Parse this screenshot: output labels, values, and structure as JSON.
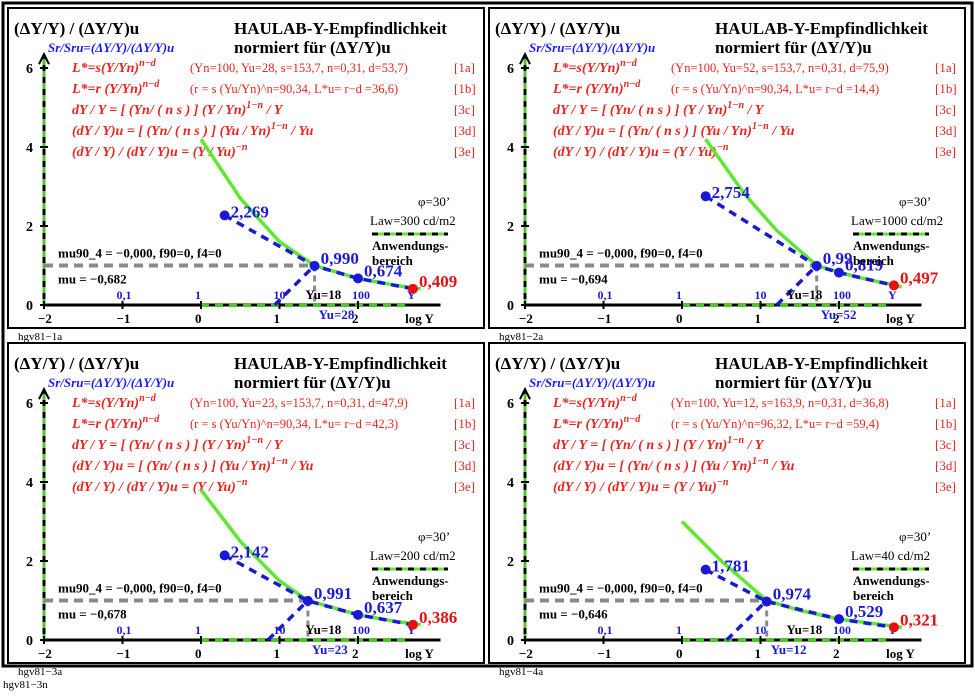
{
  "page_footer": "hgv81−3n",
  "colors": {
    "frame": "#000000",
    "formula_red": "#e8241f",
    "title_blue": "#1a1aff",
    "data_blue": "#1a1ad6",
    "curve_green": "#5ee832",
    "dash_gray": "#8a8a8a",
    "point_red": "#e81010",
    "axis_dash_green": "#4cc62a",
    "axis_dash_black": "#000000"
  },
  "panels": [
    {
      "id": "hgv81-1a",
      "title_left_1": "(ΔY/Y) / (ΔY/Y)u",
      "title_left_2": "Sr/Sru=(ΔY/Y)/(ΔY/Y)u",
      "title_right_1": "HAULAB-Y-Empfindlichkeit",
      "title_right_2": "normiert für (ΔY/Y)u",
      "formulas": [
        {
          "text": "L*=s(Y/Yn)^n−d",
          "params": "(Yn=100, Yu=28, s=153,7, n=0,31, d=53,7)",
          "tag": "[1a]"
        },
        {
          "text": "L*=r (Y/Yn)^n−d",
          "params": "(r = s (Yu/Yn)^n=90,34, L*u= r−d =36,6)",
          "tag": "[1b]"
        },
        {
          "text": "dY / Y = [ (Yn/ ( n s ) ] (Y / Yn)^(1−n) / Y",
          "params": "",
          "tag": "[3c]"
        },
        {
          "text": "(dY / Y)u = [ (Yn/ ( n s ) ] (Yu / Yn)^(1−n) / Yu",
          "params": "",
          "tag": "[3d]"
        },
        {
          "text": "(dY / Y) / (dY / Y)u = (Y / Yu)^−n",
          "params": "",
          "tag": "[3e]"
        }
      ],
      "phi": "φ=30’",
      "Law": "Law=300 cd/m2",
      "application_label": "Anwendungs-\nbereich",
      "m_u90": "mu90_4 = −0,000, f90=0, f4=0",
      "m_u": "mu = −0,682",
      "footer": "hgv81−1a",
      "Yu_label": "Yu=18",
      "Yu_below": "Yu=28",
      "chart_data": {
        "type": "line",
        "xlabel": "log Y",
        "xlim": [
          -2,
          3
        ],
        "ylim": [
          0,
          6
        ],
        "x_ticks": [
          -2,
          -1,
          0,
          1,
          2
        ],
        "y_ticks": [
          0,
          2,
          4,
          6
        ],
        "linear_Y_tick_labels": [
          "0,1",
          "1",
          "10",
          "100",
          "Y"
        ],
        "labeled_points": [
          {
            "logY": 0.301,
            "value": 2.269,
            "label": "2,269"
          },
          {
            "logY": 1.447,
            "value": 0.99,
            "label": "0,990"
          },
          {
            "logY": 2.0,
            "value": 0.674,
            "label": "0,674"
          },
          {
            "logY": 2.7,
            "value": 0.409,
            "label": "0,409"
          }
        ],
        "series": [
          {
            "name": "",
            "x": [
              0,
              0.5,
              1.0,
              1.447,
              2.0,
              2.5,
              2.8
            ],
            "y": [
              4.2,
              2.7,
              1.6,
              1.0,
              0.67,
              0.49,
              0.41
            ]
          }
        ]
      }
    },
    {
      "id": "hgv81-2a",
      "title_left_1": "(ΔY/Y) / (ΔY/Y)u",
      "title_left_2": "Sr/Sru=(ΔY/Y)/(ΔY/Y)u",
      "title_right_1": "HAULAB-Y-Empfindlichkeit",
      "title_right_2": "normiert für (ΔY/Y)u",
      "formulas": [
        {
          "text": "L*=s(Y/Yn)^n−d",
          "params": "(Yn=100, Yu=52, s=153,7, n=0,31, d=75,9)",
          "tag": "[1a]"
        },
        {
          "text": "L*=r (Y/Yn)^n−d",
          "params": "(r = s (Yu/Yn)^n=90,34, L*u= r−d =14,4)",
          "tag": "[1b]"
        },
        {
          "text": "dY / Y = [ (Yn/ ( n s ) ] (Y / Yn)^(1−n) / Y",
          "params": "",
          "tag": "[3c]"
        },
        {
          "text": "(dY / Y)u = [ (Yn/ ( n s ) ] (Yu / Yn)^(1−n) / Yu",
          "params": "",
          "tag": "[3d]"
        },
        {
          "text": "(dY / Y) / (dY / Y)u = (Y / Yu)^−n",
          "params": "",
          "tag": "[3e]"
        }
      ],
      "phi": "φ=30’",
      "Law": "Law=1000 cd/m2",
      "application_label": "Anwendungs-\nbereich",
      "m_u90": "mu90_4 = −0,000, f90=0, f4=0",
      "m_u": "mu = −0,694",
      "footer": "hgv81−2a",
      "Yu_label": "Yu=18",
      "Yu_below": "Yu=52",
      "chart_data": {
        "type": "line",
        "xlabel": "log Y",
        "xlim": [
          -2,
          3
        ],
        "ylim": [
          0,
          6
        ],
        "x_ticks": [
          -2,
          -1,
          0,
          1,
          2
        ],
        "y_ticks": [
          0,
          2,
          4,
          6
        ],
        "linear_Y_tick_labels": [
          "0,1",
          "1",
          "10",
          "100",
          "Y"
        ],
        "labeled_points": [
          {
            "logY": 0.301,
            "value": 2.754,
            "label": "2,754"
          },
          {
            "logY": 1.716,
            "value": 0.99,
            "label": "0,99"
          },
          {
            "logY": 2.0,
            "value": 0.819,
            "label": "0,819"
          },
          {
            "logY": 2.7,
            "value": 0.497,
            "label": "0,497"
          }
        ],
        "series": [
          {
            "name": "",
            "x": [
              0.3,
              0.8,
              1.2,
              1.716,
              2.2,
              2.8
            ],
            "y": [
              4.2,
              2.8,
              1.9,
              1.0,
              0.72,
              0.46
            ]
          }
        ]
      }
    },
    {
      "id": "hgv81-3a",
      "title_left_1": "(ΔY/Y) / (ΔY/Y)u",
      "title_left_2": "Sr/Sru=(ΔY/Y)/(ΔY/Y)u",
      "title_right_1": "HAULAB-Y-Empfindlichkeit",
      "title_right_2": "normiert für (ΔY/Y)u",
      "formulas": [
        {
          "text": "L*=s(Y/Yn)^n−d",
          "params": "(Yn=100, Yu=23, s=153,7, n=0,31, d=47,9)",
          "tag": "[1a]"
        },
        {
          "text": "L*=r (Y/Yn)^n−d",
          "params": "(r = s (Yu/Yn)^n=90,34, L*u= r−d =42,3)",
          "tag": "[1b]"
        },
        {
          "text": "dY / Y = [ (Yn/ ( n s ) ] (Y / Yn)^(1−n) / Y",
          "params": "",
          "tag": "[3c]"
        },
        {
          "text": "(dY / Y)u = [ (Yn/ ( n s ) ] (Yu / Yn)^(1−n) / Yu",
          "params": "",
          "tag": "[3d]"
        },
        {
          "text": "(dY / Y) / (dY / Y)u = (Y / Yu)^−n",
          "params": "",
          "tag": "[3e]"
        }
      ],
      "phi": "φ=30’",
      "Law": "Law=200 cd/m2",
      "application_label": "Anwendungs-\nbereich",
      "m_u90": "mu90_4 = −0,000, f90=0, f4=0",
      "m_u": "mu = −0,678",
      "footer": "hgv81−3a",
      "Yu_label": "Yu=18",
      "Yu_below": "Yu=23",
      "chart_data": {
        "type": "line",
        "xlabel": "log Y",
        "xlim": [
          -2,
          3
        ],
        "ylim": [
          0,
          6
        ],
        "x_ticks": [
          -2,
          -1,
          0,
          1,
          2
        ],
        "y_ticks": [
          0,
          2,
          4,
          6
        ],
        "linear_Y_tick_labels": [
          "0,1",
          "1",
          "10",
          "100",
          "Y"
        ],
        "labeled_points": [
          {
            "logY": 0.301,
            "value": 2.142,
            "label": "2,142"
          },
          {
            "logY": 1.362,
            "value": 0.991,
            "label": "0,991"
          },
          {
            "logY": 2.0,
            "value": 0.637,
            "label": "0,637"
          },
          {
            "logY": 2.7,
            "value": 0.386,
            "label": "0,386"
          }
        ],
        "series": [
          {
            "name": "",
            "x": [
              0,
              0.5,
              1.0,
              1.362,
              2.0,
              2.5,
              2.8
            ],
            "y": [
              3.8,
              2.5,
              1.5,
              1.0,
              0.64,
              0.46,
              0.39
            ]
          }
        ]
      }
    },
    {
      "id": "hgv81-4a",
      "title_left_1": "(ΔY/Y) / (ΔY/Y)u",
      "title_left_2": "Sr/Sru=(ΔY/Y)/(ΔY/Y)u",
      "title_right_1": "HAULAB-Y-Empfindlichkeit",
      "title_right_2": "normiert für (ΔY/Y)u",
      "formulas": [
        {
          "text": "L*=s(Y/Yn)^n−d",
          "params": "(Yn=100, Yu=12, s=163,9, n=0,31, d=36,8)",
          "tag": "[1a]"
        },
        {
          "text": "L*=r (Y/Yn)^n−d",
          "params": "(r = s (Yu/Yn)^n=96,32, L*u= r−d =59,4)",
          "tag": "[1b]"
        },
        {
          "text": "dY / Y = [ (Yn/ ( n s ) ] (Y / Yn)^(1−n) / Y",
          "params": "",
          "tag": "[3c]"
        },
        {
          "text": "(dY / Y)u = [ (Yn/ ( n s ) ] (Yu / Yn)^(1−n) / Yu",
          "params": "",
          "tag": "[3d]"
        },
        {
          "text": "(dY / Y) / (dY / Y)u = (Y / Yu)^−n",
          "params": "",
          "tag": "[3e]"
        }
      ],
      "phi": "φ=30’",
      "Law": "Law=40 cd/m2",
      "application_label": "Anwendungs-\nbereich",
      "m_u90": "mu90_4 = −0,000, f90=0, f4=0",
      "m_u": "mu = −0,646",
      "footer": "hgv81−4a",
      "Yu_label": "Yu=18",
      "Yu_below": "Yu=12",
      "chart_data": {
        "type": "line",
        "xlabel": "log Y",
        "xlim": [
          -2,
          3
        ],
        "ylim": [
          0,
          6
        ],
        "x_ticks": [
          -2,
          -1,
          0,
          1,
          2
        ],
        "y_ticks": [
          0,
          2,
          4,
          6
        ],
        "linear_Y_tick_labels": [
          "0,1",
          "1",
          "10",
          "100",
          "Y"
        ],
        "labeled_points": [
          {
            "logY": 0.301,
            "value": 1.781,
            "label": "1,781"
          },
          {
            "logY": 1.079,
            "value": 0.974,
            "label": "0,974"
          },
          {
            "logY": 2.0,
            "value": 0.529,
            "label": "0,529"
          },
          {
            "logY": 2.7,
            "value": 0.321,
            "label": "0,321"
          }
        ],
        "series": [
          {
            "name": "",
            "x": [
              0,
              0.5,
              1.079,
              1.5,
              2.0,
              2.5,
              2.8
            ],
            "y": [
              3.0,
              2.0,
              1.0,
              0.75,
              0.53,
              0.4,
              0.32
            ]
          }
        ]
      }
    }
  ]
}
